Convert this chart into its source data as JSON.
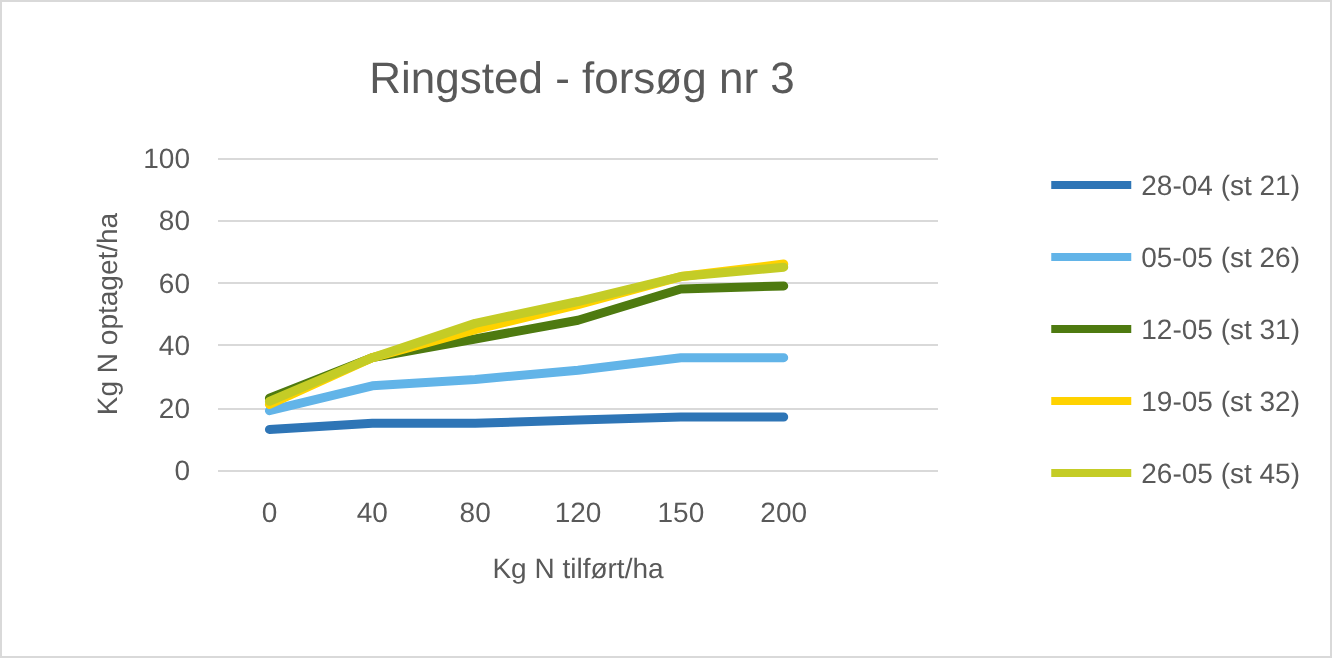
{
  "chart_data": {
    "type": "line",
    "title": "Ringsted - forsøg nr 3",
    "xlabel": "Kg N tilført/ha",
    "ylabel": "Kg N optaget/ha",
    "categories": [
      "0",
      "40",
      "80",
      "120",
      "150",
      "200",
      null
    ],
    "series": [
      {
        "name": "28-04 (st 21)",
        "color": "#2e75b6",
        "values": [
          13,
          15,
          15,
          16,
          17,
          17,
          null
        ]
      },
      {
        "name": "05-05 (st 26)",
        "color": "#62b4e8",
        "values": [
          19,
          27,
          29,
          32,
          36,
          36,
          null
        ]
      },
      {
        "name": "12-05 (st 31)",
        "color": "#4e7a10",
        "values": [
          23,
          36,
          42,
          48,
          58,
          59,
          null
        ]
      },
      {
        "name": "19-05 (st 32)",
        "color": "#ffd200",
        "values": [
          21,
          36,
          45,
          53,
          62,
          66,
          null
        ]
      },
      {
        "name": "26-05 (st 45)",
        "color": "#c4cc26",
        "values": [
          22,
          36,
          47,
          54,
          62,
          65,
          null
        ]
      }
    ],
    "ylim": [
      0,
      100
    ],
    "yticks": [
      0,
      20,
      40,
      60,
      80,
      100
    ],
    "grid": "y",
    "legend": "right",
    "marker": "none",
    "line_style": "solid"
  }
}
